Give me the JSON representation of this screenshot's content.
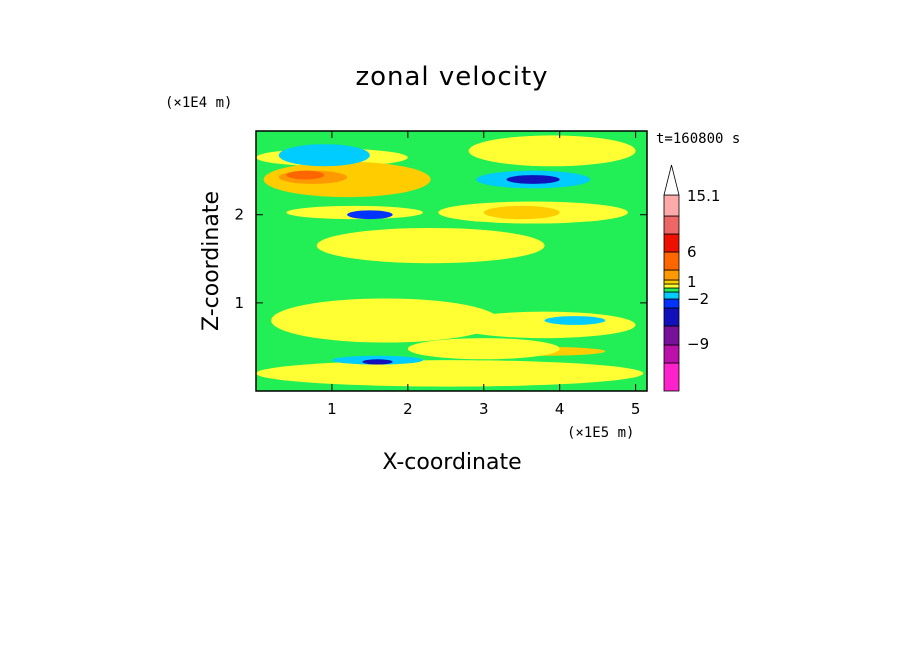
{
  "chart_data": {
    "type": "heatmap",
    "title": "zonal velocity",
    "xlabel": "X-coordinate",
    "ylabel": "Z-coordinate",
    "x_unit": "(×1E5 m)",
    "y_unit": "(×1E4 m)",
    "time_label": "t=160800 s",
    "xlim": [
      0,
      5.15
    ],
    "ylim": [
      0,
      2.95
    ],
    "x_ticks": [
      "1",
      "2",
      "3",
      "4",
      "5"
    ],
    "x_tick_values": [
      1,
      2,
      3,
      4,
      5
    ],
    "y_ticks": [
      "1",
      "2"
    ],
    "y_tick_values": [
      1,
      2
    ],
    "colorbar": {
      "tick_labels": [
        "15.1",
        "6",
        "1",
        "−2",
        "−9"
      ],
      "tick_values": [
        15.1,
        6,
        1,
        -2,
        -9
      ],
      "levels": [
        {
          "color": "#ff22cc"
        },
        {
          "color": "#bb11aa"
        },
        {
          "color": "#771199"
        },
        {
          "color": "#1111bb"
        },
        {
          "color": "#0033ff"
        },
        {
          "color": "#00ccff"
        },
        {
          "color": "#22ee55"
        },
        {
          "color": "#ffff33"
        },
        {
          "color": "#ffcc00"
        },
        {
          "color": "#ff9900"
        },
        {
          "color": "#ff6600"
        },
        {
          "color": "#ee1100"
        },
        {
          "color": "#ee6666"
        },
        {
          "color": "#ffaaaa"
        },
        {
          "color": "#ffffff"
        }
      ]
    },
    "background_color": "#22ee55",
    "regions": [
      {
        "level": "yellow",
        "color": "#ffff33",
        "x": [
          0.0,
          2.0
        ],
        "z": [
          2.55,
          2.75
        ]
      },
      {
        "level": "yellow",
        "color": "#ffff33",
        "x": [
          2.8,
          5.0
        ],
        "z": [
          2.55,
          2.9
        ]
      },
      {
        "level": "orange",
        "color": "#ffcc00",
        "x": [
          0.1,
          2.3
        ],
        "z": [
          2.2,
          2.6
        ]
      },
      {
        "level": "orange",
        "color": "#ff9900",
        "x": [
          0.3,
          1.2
        ],
        "z": [
          2.35,
          2.5
        ]
      },
      {
        "level": "red",
        "color": "#ff6600",
        "x": [
          0.4,
          0.9
        ],
        "z": [
          2.4,
          2.5
        ]
      },
      {
        "level": "cyan",
        "color": "#00ccff",
        "x": [
          0.3,
          1.5
        ],
        "z": [
          2.55,
          2.8
        ]
      },
      {
        "level": "cyan",
        "color": "#00ccff",
        "x": [
          2.9,
          4.4
        ],
        "z": [
          2.3,
          2.5
        ]
      },
      {
        "level": "blue",
        "color": "#1111bb",
        "x": [
          3.3,
          4.0
        ],
        "z": [
          2.35,
          2.45
        ]
      },
      {
        "level": "yellow",
        "color": "#ffff33",
        "x": [
          2.4,
          4.9
        ],
        "z": [
          1.9,
          2.15
        ]
      },
      {
        "level": "orange",
        "color": "#ffcc00",
        "x": [
          3.0,
          4.0
        ],
        "z": [
          1.95,
          2.1
        ]
      },
      {
        "level": "yellow",
        "color": "#ffff33",
        "x": [
          0.4,
          2.2
        ],
        "z": [
          1.95,
          2.1
        ]
      },
      {
        "level": "blue",
        "color": "#0033ff",
        "x": [
          1.2,
          1.8
        ],
        "z": [
          1.95,
          2.05
        ]
      },
      {
        "level": "yellow",
        "color": "#ffff33",
        "x": [
          0.8,
          3.8
        ],
        "z": [
          1.45,
          1.85
        ]
      },
      {
        "level": "yellow",
        "color": "#ffff33",
        "x": [
          0.2,
          3.2
        ],
        "z": [
          0.55,
          1.05
        ]
      },
      {
        "level": "yellow",
        "color": "#ffff33",
        "x": [
          2.6,
          5.0
        ],
        "z": [
          0.6,
          0.9
        ]
      },
      {
        "level": "cyan",
        "color": "#00ccff",
        "x": [
          3.8,
          4.6
        ],
        "z": [
          0.75,
          0.85
        ]
      },
      {
        "level": "yellow",
        "color": "#ffff33",
        "x": [
          0.0,
          5.1
        ],
        "z": [
          0.05,
          0.35
        ]
      },
      {
        "level": "cyan",
        "color": "#00ccff",
        "x": [
          1.0,
          2.2
        ],
        "z": [
          0.3,
          0.4
        ]
      },
      {
        "level": "blue",
        "color": "#1111bb",
        "x": [
          1.4,
          1.8
        ],
        "z": [
          0.3,
          0.36
        ]
      },
      {
        "level": "orange",
        "color": "#ffcc00",
        "x": [
          3.0,
          4.6
        ],
        "z": [
          0.4,
          0.5
        ]
      },
      {
        "level": "yellow",
        "color": "#ffff33",
        "x": [
          2.0,
          4.0
        ],
        "z": [
          0.36,
          0.6
        ]
      }
    ]
  }
}
